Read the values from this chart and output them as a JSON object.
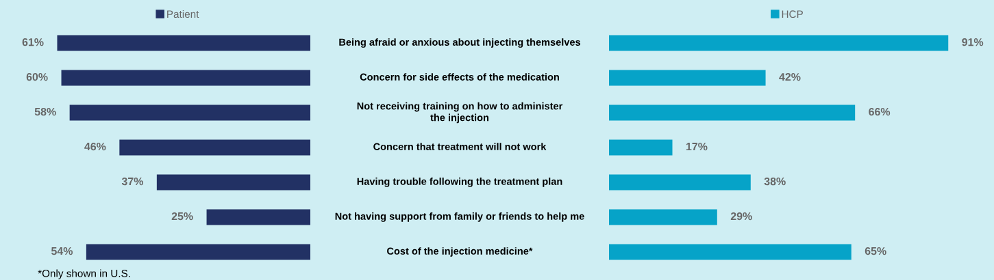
{
  "chart_data": [
    {
      "type": "bar",
      "orientation": "horizontal",
      "categories": [
        "Being afraid or anxious about injecting themselves",
        "Concern for side effects of the medication",
        "Not receiving training on how to administer\nthe injection",
        "Concern that treatment will not work",
        "Having trouble following the treatment plan",
        "Not having support from family or friends to help me",
        "Cost of the injection medicine*"
      ],
      "series": [
        {
          "name": "Patient",
          "color": "#223164",
          "values": [
            61,
            60,
            58,
            46,
            37,
            25,
            54
          ],
          "value_labels": [
            "61%",
            "60%",
            "58%",
            "46%",
            "37%",
            "25%",
            "54%"
          ]
        }
      ],
      "tick_labels": false,
      "legend": "top",
      "grid": false,
      "annotations": [
        "*Only shown in U.S."
      ]
    },
    {
      "type": "bar",
      "orientation": "horizontal",
      "categories": [
        null,
        null,
        null,
        null,
        null,
        null,
        null
      ],
      "series": [
        {
          "name": "HCP",
          "color": "#06a3c8",
          "values": [
            91,
            42,
            66,
            17,
            38,
            29,
            65
          ],
          "value_labels": [
            "91%",
            "42%",
            "66%",
            "17%",
            "38%",
            "29%",
            "65%"
          ]
        }
      ],
      "tick_labels": false,
      "legend": "top",
      "grid": false
    }
  ]
}
